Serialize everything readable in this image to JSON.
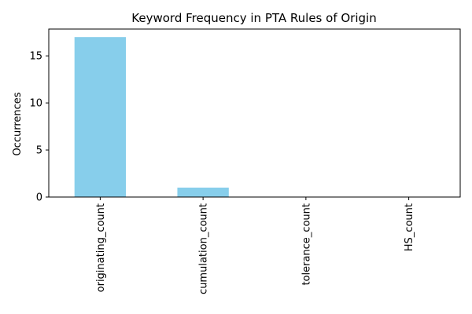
{
  "chart_data": {
    "type": "bar",
    "title": "Keyword Frequency in PTA Rules of Origin",
    "xlabel": "",
    "ylabel": "Occurrences",
    "categories": [
      "originating_count",
      "cumulation_count",
      "tolerance_count",
      "HS_count"
    ],
    "values": [
      17,
      1,
      0,
      0
    ],
    "yticks": [
      0,
      5,
      10,
      15
    ],
    "ylim": [
      0,
      17.85
    ],
    "grid": false,
    "legend": "none",
    "bar_color": "#87CEEB"
  }
}
